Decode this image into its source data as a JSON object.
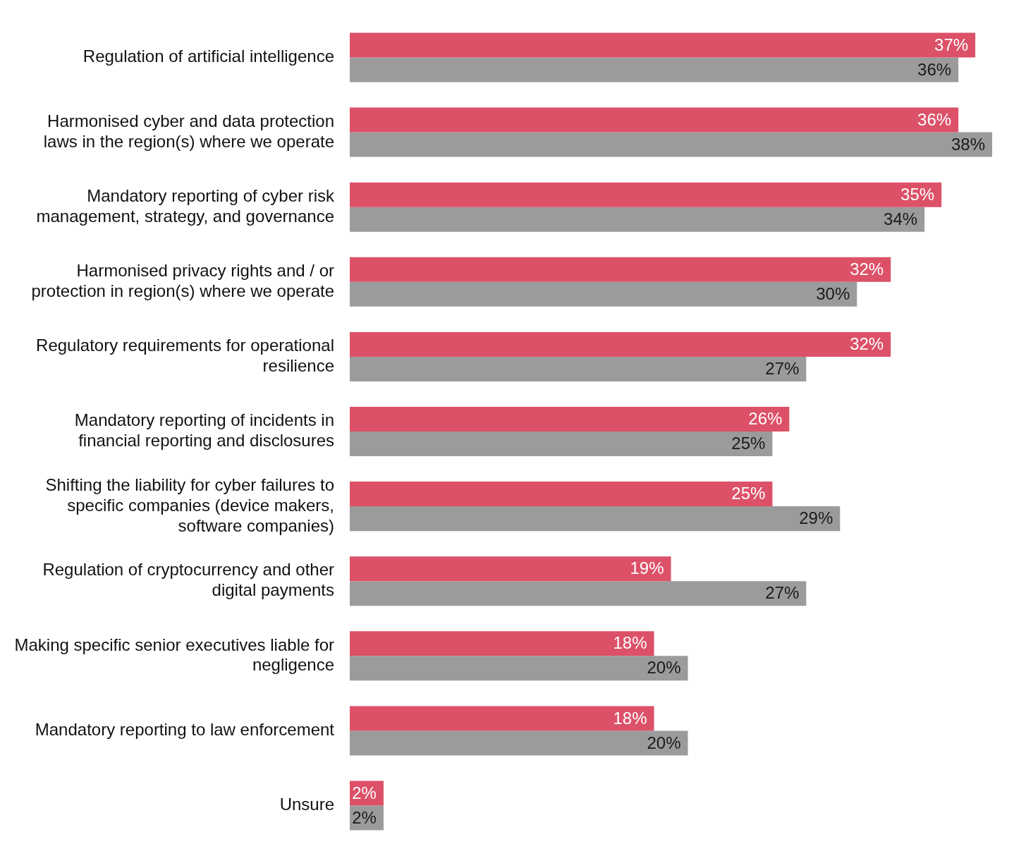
{
  "chart_data": {
    "type": "bar",
    "orientation": "horizontal",
    "legend": false,
    "grid": false,
    "tick_labels": "y",
    "categories": [
      "Regulation of artificial intelligence",
      "Harmonised cyber and data protection laws in the region(s) where we operate",
      "Mandatory reporting of cyber risk management, strategy, and governance",
      "Harmonised privacy rights and / or protection in region(s) where we operate",
      "Regulatory requirements for operational resilience",
      "Mandatory reporting of incidents in financial reporting and disclosures",
      "Shifting the liability for cyber failures to specific companies (device makers, software companies)",
      "Regulation of cryptocurrency and other digital payments",
      "Making specific senior executives liable for negligence",
      "Mandatory reporting to law enforcement",
      "Unsure"
    ],
    "series": [
      {
        "color": "#dc5168",
        "values": [
          37,
          36,
          35,
          32,
          32,
          26,
          25,
          19,
          18,
          18,
          2
        ],
        "value_labels": [
          "37%",
          "36%",
          "35%",
          "32%",
          "32%",
          "26%",
          "25%",
          "19%",
          "18%",
          "18%",
          "2%"
        ]
      },
      {
        "color": "#9b9b9b",
        "values": [
          36,
          38,
          34,
          30,
          27,
          25,
          29,
          27,
          20,
          20,
          2
        ],
        "value_labels": [
          "36%",
          "38%",
          "34%",
          "30%",
          "27%",
          "25%",
          "29%",
          "27%",
          "20%",
          "20%",
          "2%"
        ]
      }
    ]
  }
}
